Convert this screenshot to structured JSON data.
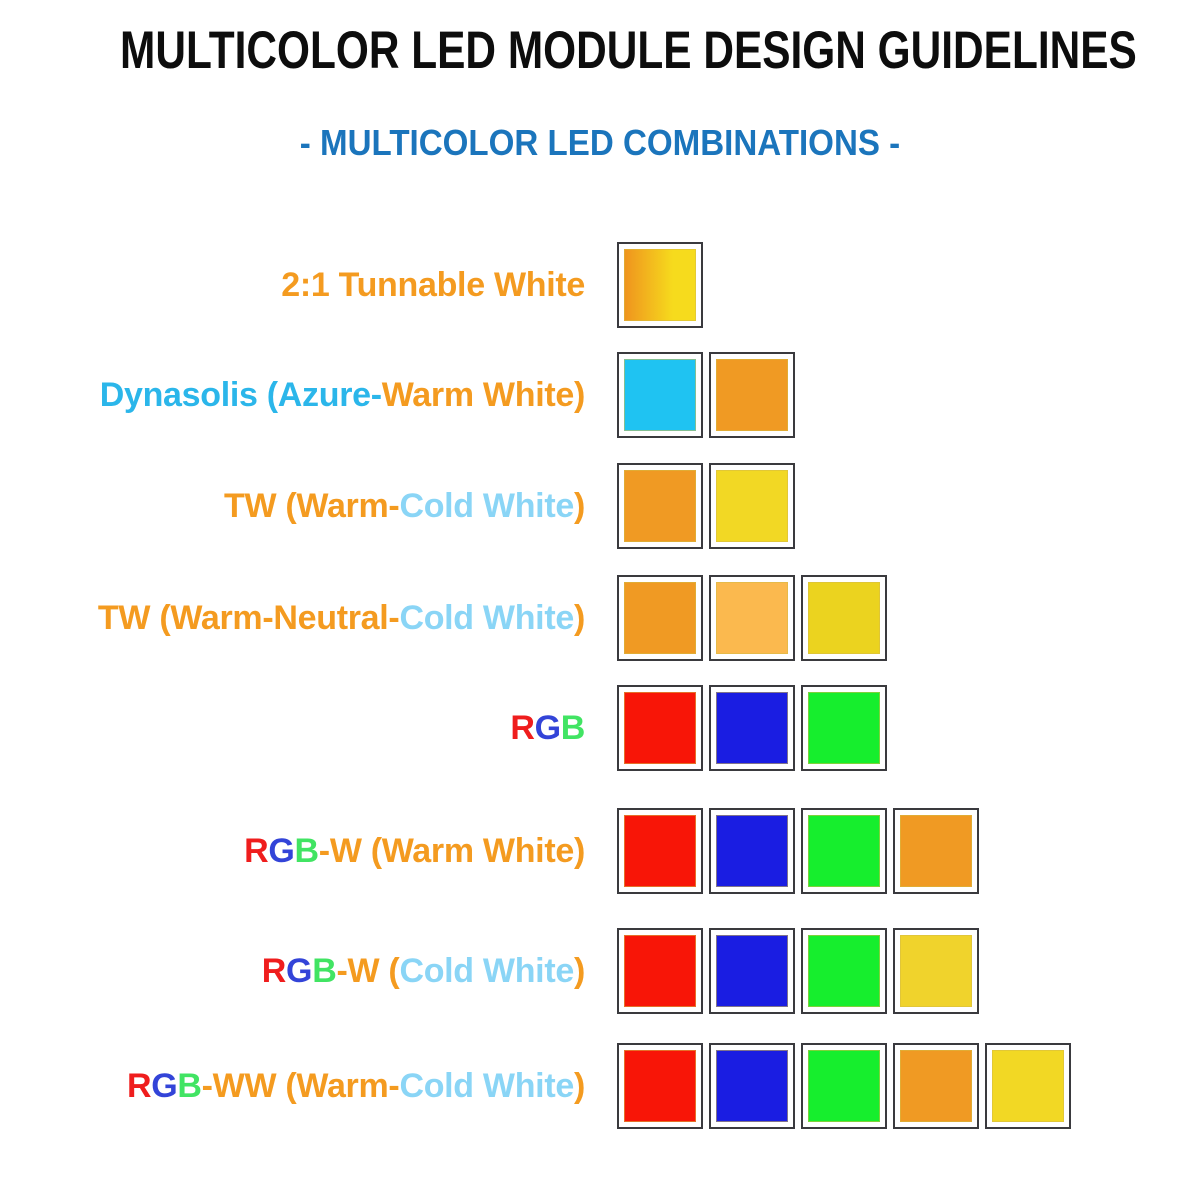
{
  "title": "MULTICOLOR LED MODULE DESIGN GUIDELINES",
  "subtitle": "- MULTICOLOR LED COMBINATIONS -",
  "theme": {
    "background": "#FFFFFF",
    "title_color": "#0D0D0D",
    "subtitle_color": "#1B75BC",
    "swatch_border": "#3A3A3E"
  },
  "label_palette": {
    "orange": "#F49B20",
    "azure": "#2BB6EA",
    "light_blue": "#8AD5F6",
    "red": "#EF1D1D",
    "blue": "#3344D8",
    "green": "#41E463"
  },
  "swatch_palette": {
    "warm_white_orange": "#F09A23",
    "cold_white_yellow": "#F2D824",
    "azure": "#1FC3F2",
    "neutral_white_orange": "#FBB94E",
    "cold_white_yellow_green": "#EBD31F",
    "cold_white_gold": "#F0D32C",
    "red": "#F81507",
    "blue": "#1A1DE2",
    "green": "#16EE2D",
    "gradient_warm": "#EF951E",
    "gradient_cold": "#F6DB1D"
  },
  "rows": [
    {
      "id": "tunable-white-2-1",
      "label_segments": [
        {
          "text": "2:1 Tunnable White",
          "color": "orange"
        }
      ],
      "swatches": [
        {
          "name": "tunable-white-gradient",
          "gradient": [
            "gradient_warm",
            "gradient_cold"
          ]
        }
      ]
    },
    {
      "id": "dynasolis",
      "label_segments": [
        {
          "text": "Dynasolis (Azure-",
          "color": "azure"
        },
        {
          "text": "Warm White)",
          "color": "orange"
        }
      ],
      "swatches": [
        {
          "name": "azure",
          "color": "azure"
        },
        {
          "name": "warm-white",
          "color": "warm_white_orange"
        }
      ]
    },
    {
      "id": "tw-warm-cold",
      "label_segments": [
        {
          "text": "TW (Warm-",
          "color": "orange"
        },
        {
          "text": "Cold White",
          "color": "light_blue"
        },
        {
          "text": ")",
          "color": "orange"
        }
      ],
      "swatches": [
        {
          "name": "warm-white",
          "color": "warm_white_orange"
        },
        {
          "name": "cold-white",
          "color": "cold_white_yellow"
        }
      ]
    },
    {
      "id": "tw-warm-neutral-cold",
      "label_segments": [
        {
          "text": "TW (Warm-Neutral-",
          "color": "orange"
        },
        {
          "text": "Cold White",
          "color": "light_blue"
        },
        {
          "text": ")",
          "color": "orange"
        }
      ],
      "swatches": [
        {
          "name": "warm-white",
          "color": "warm_white_orange"
        },
        {
          "name": "neutral-white",
          "color": "neutral_white_orange"
        },
        {
          "name": "cold-white",
          "color": "cold_white_yellow_green"
        }
      ]
    },
    {
      "id": "rgb",
      "label_segments": [
        {
          "text": "R",
          "color": "red"
        },
        {
          "text": "G",
          "color": "blue"
        },
        {
          "text": "B",
          "color": "green"
        }
      ],
      "swatches": [
        {
          "name": "red",
          "color": "red"
        },
        {
          "name": "blue",
          "color": "blue"
        },
        {
          "name": "green",
          "color": "green"
        }
      ]
    },
    {
      "id": "rgbw-warm-white",
      "label_segments": [
        {
          "text": "R",
          "color": "red"
        },
        {
          "text": "G",
          "color": "blue"
        },
        {
          "text": "B",
          "color": "green"
        },
        {
          "text": "-W (Warm White)",
          "color": "orange"
        }
      ],
      "swatches": [
        {
          "name": "red",
          "color": "red"
        },
        {
          "name": "blue",
          "color": "blue"
        },
        {
          "name": "green",
          "color": "green"
        },
        {
          "name": "warm-white",
          "color": "warm_white_orange"
        }
      ]
    },
    {
      "id": "rgbw-cold-white",
      "label_segments": [
        {
          "text": "R",
          "color": "red"
        },
        {
          "text": "G",
          "color": "blue"
        },
        {
          "text": "B",
          "color": "green"
        },
        {
          "text": "-W (",
          "color": "orange"
        },
        {
          "text": "Cold White",
          "color": "light_blue"
        },
        {
          "text": ")",
          "color": "orange"
        }
      ],
      "swatches": [
        {
          "name": "red",
          "color": "red"
        },
        {
          "name": "blue",
          "color": "blue"
        },
        {
          "name": "green",
          "color": "green"
        },
        {
          "name": "cold-white",
          "color": "cold_white_gold"
        }
      ]
    },
    {
      "id": "rgbww-warm-cold-white",
      "label_segments": [
        {
          "text": "R",
          "color": "red"
        },
        {
          "text": "G",
          "color": "blue"
        },
        {
          "text": "B",
          "color": "green"
        },
        {
          "text": "-WW (Warm-",
          "color": "orange"
        },
        {
          "text": "Cold White",
          "color": "light_blue"
        },
        {
          "text": ")",
          "color": "orange"
        }
      ],
      "swatches": [
        {
          "name": "red",
          "color": "red"
        },
        {
          "name": "blue",
          "color": "blue"
        },
        {
          "name": "green",
          "color": "green"
        },
        {
          "name": "warm-white",
          "color": "warm_white_orange"
        },
        {
          "name": "cold-white",
          "color": "cold_white_yellow"
        }
      ]
    }
  ]
}
